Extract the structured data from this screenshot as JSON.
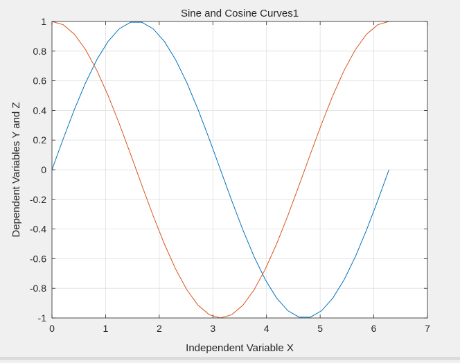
{
  "chart_data": {
    "type": "line",
    "title": "Sine and Cosine Curves1",
    "xlabel": "Independent Variable X",
    "ylabel": "Dependent Variables Y and Z",
    "xlim": [
      0,
      7
    ],
    "ylim": [
      -1,
      1
    ],
    "xticks": [
      0,
      1,
      2,
      3,
      4,
      5,
      6,
      7
    ],
    "xtick_labels": [
      "0",
      "1",
      "2",
      "3",
      "4",
      "5",
      "6",
      "7"
    ],
    "yticks": [
      -1,
      -0.8,
      -0.6,
      -0.4,
      -0.2,
      0,
      0.2,
      0.4,
      0.6,
      0.8,
      1
    ],
    "ytick_labels": [
      "-1",
      "-0.8",
      "-0.6",
      "-0.4",
      "-0.2",
      "0",
      "0.2",
      "0.4",
      "0.6",
      "0.8",
      "1"
    ],
    "grid": true,
    "x": [
      0,
      0.2094,
      0.4189,
      0.6283,
      0.8378,
      1.0472,
      1.2566,
      1.4661,
      1.6755,
      1.885,
      2.0944,
      2.3038,
      2.5133,
      2.7227,
      2.9322,
      3.1416,
      3.351,
      3.5605,
      3.7699,
      3.9794,
      4.1888,
      4.3982,
      4.6077,
      4.8171,
      5.0265,
      5.236,
      5.4454,
      5.6549,
      5.8643,
      6.0737,
      6.2832
    ],
    "series": [
      {
        "color": "#0072BD",
        "values": [
          0,
          0.2079,
          0.4067,
          0.5878,
          0.7431,
          0.866,
          0.9511,
          0.9945,
          0.9945,
          0.9511,
          0.866,
          0.7431,
          0.5878,
          0.4067,
          0.2079,
          0,
          -0.2079,
          -0.4067,
          -0.5878,
          -0.7431,
          -0.866,
          -0.9511,
          -0.9945,
          -0.9945,
          -0.9511,
          -0.866,
          -0.7431,
          -0.5878,
          -0.4067,
          -0.2079,
          0
        ]
      },
      {
        "color": "#D95319",
        "values": [
          1,
          0.9781,
          0.9135,
          0.809,
          0.6691,
          0.5,
          0.309,
          0.1045,
          -0.1045,
          -0.309,
          -0.5,
          -0.6691,
          -0.809,
          -0.9135,
          -0.9781,
          -1,
          -0.9781,
          -0.9135,
          -0.809,
          -0.6691,
          -0.5,
          -0.309,
          -0.1045,
          0.1045,
          0.309,
          0.5,
          0.6691,
          0.809,
          0.9135,
          0.9781,
          1
        ]
      }
    ]
  }
}
